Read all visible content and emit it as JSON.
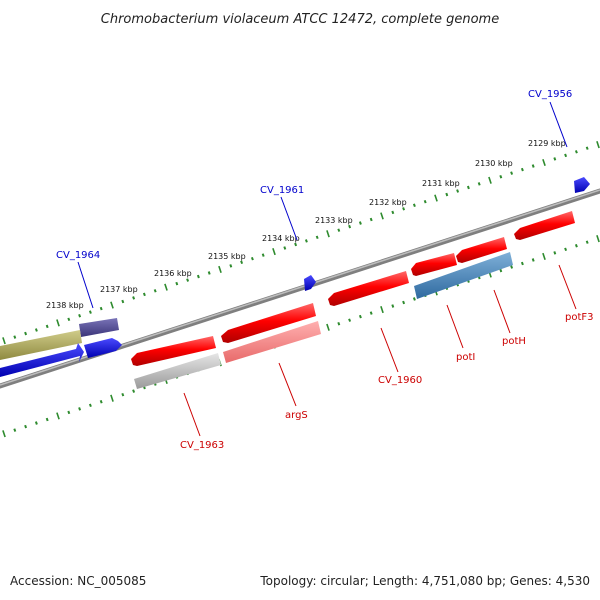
{
  "title": "Chromobacterium violaceum ATCC 12472, complete genome",
  "footer": {
    "accession": "Accession: NC_005085",
    "summary": "Topology: circular; Length: 4,751,080 bp; Genes: 4,530"
  },
  "colors": {
    "backbone": "#808080",
    "tick": "#2e8b2e",
    "forward_label": "#0000cc",
    "reverse_label": "#cc0000"
  },
  "kbp_labels": [
    "2129 kbp",
    "2130 kbp",
    "2131 kbp",
    "2132 kbp",
    "2133 kbp",
    "2134 kbp",
    "2135 kbp",
    "2136 kbp",
    "2137 kbp",
    "2138 kbp"
  ],
  "forward_gene_labels": [
    "CV_1956",
    "CV_1961",
    "CV_1964"
  ],
  "reverse_gene_labels": [
    "potF3",
    "potH",
    "potI",
    "CV_1960",
    "argS",
    "CV_1963"
  ]
}
